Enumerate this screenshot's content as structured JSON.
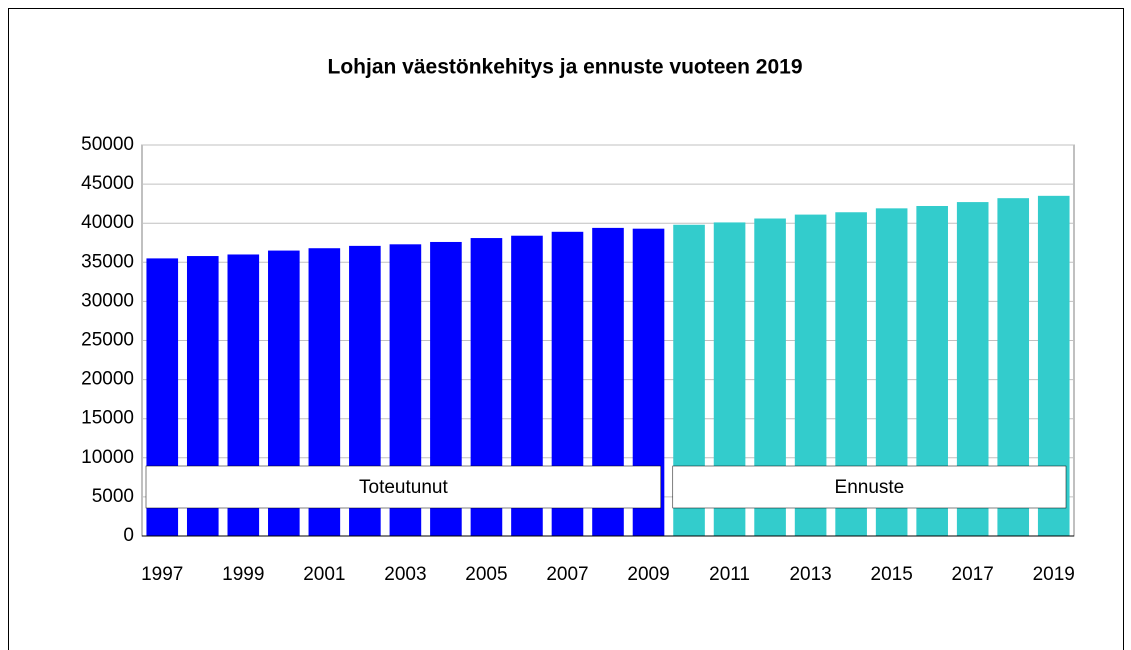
{
  "chart_data": {
    "type": "bar",
    "title": "Lohjan väestönkehitys ja ennuste vuoteen 2019",
    "categories": [
      "1997",
      null,
      "1999",
      null,
      "2001",
      null,
      "2003",
      null,
      "2005",
      null,
      "2007",
      null,
      "2009",
      null,
      "2011",
      null,
      "2013",
      null,
      "2015",
      null,
      "2017",
      null,
      "2019"
    ],
    "series": [
      {
        "name": "Toteutunut",
        "color": "#0000ff",
        "values": [
          35500,
          35800,
          36000,
          36500,
          36800,
          37100,
          37300,
          37600,
          38100,
          38400,
          38900,
          39400,
          39300,
          null,
          null,
          null,
          null,
          null,
          null,
          null,
          null,
          null,
          null
        ]
      },
      {
        "name": "Ennuste",
        "color": "#33cccc",
        "values": [
          null,
          null,
          null,
          null,
          null,
          null,
          null,
          null,
          null,
          null,
          null,
          null,
          null,
          39800,
          40100,
          40600,
          41100,
          41400,
          41900,
          42200,
          42700,
          43200,
          43500
        ]
      }
    ],
    "ylim": [
      0,
      50000
    ],
    "yticks": [
      0,
      5000,
      10000,
      15000,
      20000,
      25000,
      30000,
      35000,
      40000,
      45000,
      50000
    ],
    "grid": true
  }
}
